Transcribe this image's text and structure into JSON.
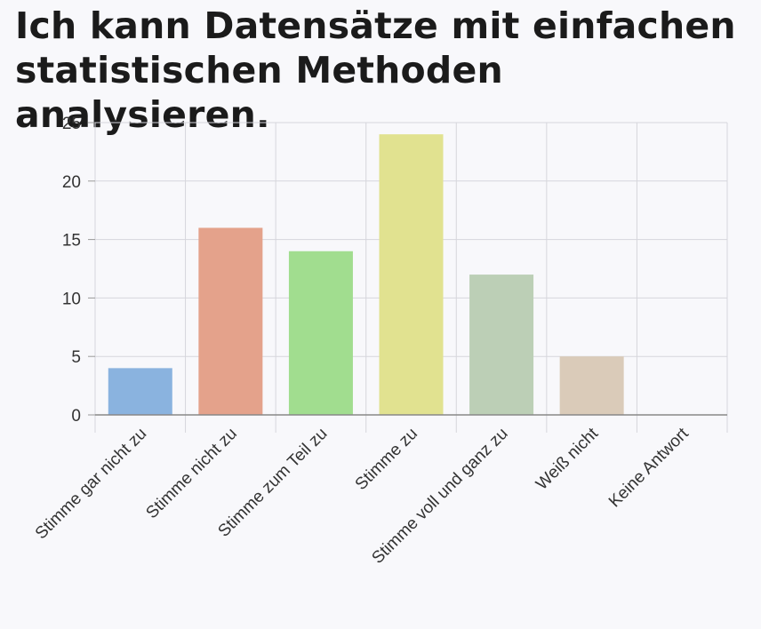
{
  "chart_data": {
    "type": "bar",
    "title": "Ich kann Datensätze mit einfachen statistischen Methoden analysieren.",
    "xlabel": "",
    "ylabel": "",
    "categories": [
      "Stimme gar nicht zu",
      "Stimme nicht zu",
      "Stimme zum Teil zu",
      "Stimme zu",
      "Stimme voll und ganz zu",
      "Weiß nicht",
      "Keine Antwort"
    ],
    "values": [
      4,
      16,
      14,
      24,
      12,
      5,
      0
    ],
    "colors": [
      "#8ab3df",
      "#e4a28b",
      "#a1dd8f",
      "#e1e290",
      "#bccfb6",
      "#dacbb9",
      "#cccccc"
    ],
    "ylim": [
      0,
      25
    ],
    "yticks": [
      "0",
      "5",
      "10",
      "15",
      "20",
      "25"
    ],
    "grid": true,
    "legend": "none"
  }
}
